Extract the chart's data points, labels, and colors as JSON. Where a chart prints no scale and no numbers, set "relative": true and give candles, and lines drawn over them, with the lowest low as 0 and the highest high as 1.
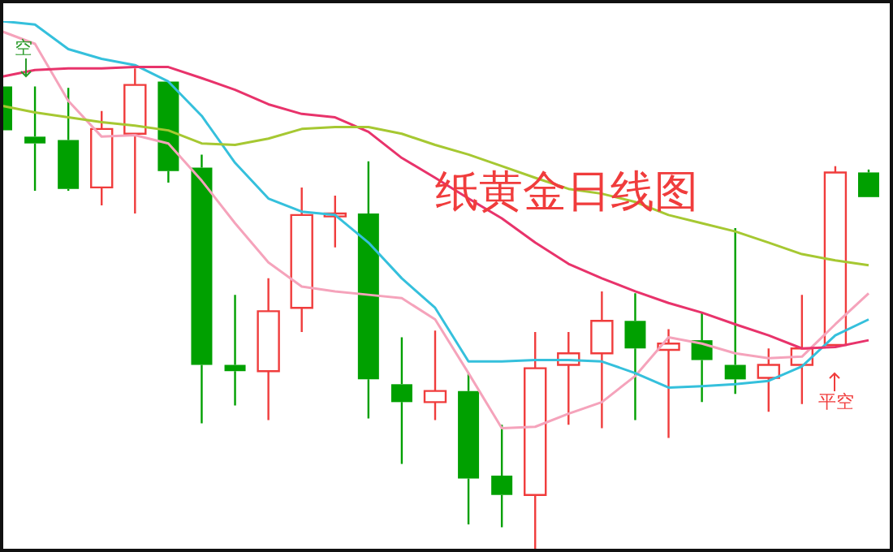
{
  "chart_data": {
    "type": "candlestick",
    "title": "纸黄金日线图",
    "relative": true,
    "categories": [
      null,
      null,
      null,
      null,
      null,
      null,
      null,
      null,
      null,
      null,
      null,
      null,
      null,
      null,
      null,
      null,
      null,
      null,
      null,
      null,
      null,
      null,
      null,
      null,
      null,
      null,
      null
    ],
    "ohlc": [
      [
        0.963,
        0.963,
        0.869,
        0.872
      ],
      [
        0.859,
        0.963,
        0.747,
        0.845
      ],
      [
        0.852,
        0.96,
        0.747,
        0.751
      ],
      [
        0.754,
        0.912,
        0.717,
        0.875
      ],
      [
        0.865,
        1.0,
        0.7,
        0.966
      ],
      [
        0.973,
        0.973,
        0.764,
        0.788
      ],
      [
        0.795,
        0.822,
        0.266,
        0.387
      ],
      [
        0.387,
        0.532,
        0.303,
        0.374
      ],
      [
        0.374,
        0.566,
        0.273,
        0.498
      ],
      [
        0.505,
        0.754,
        0.455,
        0.697
      ],
      [
        0.694,
        0.737,
        0.63,
        0.7
      ],
      [
        0.7,
        0.808,
        0.276,
        0.357
      ],
      [
        0.347,
        0.444,
        0.182,
        0.31
      ],
      [
        0.31,
        0.458,
        0.273,
        0.333
      ],
      [
        0.333,
        0.37,
        0.057,
        0.152
      ],
      [
        0.158,
        0.263,
        0.051,
        0.118
      ],
      [
        0.118,
        0.455,
        0,
        0.38
      ],
      [
        0.387,
        0.455,
        0.263,
        0.411
      ],
      [
        0.411,
        0.539,
        0.256,
        0.478
      ],
      [
        0.478,
        0.535,
        0.273,
        0.421
      ],
      [
        0.418,
        0.461,
        0.236,
        0.431
      ],
      [
        0.438,
        0.495,
        0.31,
        0.397
      ],
      [
        0.387,
        0.67,
        0.327,
        0.357
      ],
      [
        0.36,
        0.421,
        0.29,
        0.387
      ],
      [
        0.387,
        0.532,
        0.306,
        0.421
      ],
      [
        0.428,
        0.798,
        0.428,
        0.785
      ],
      [
        0.785,
        0.791,
        0.734,
        0.734
      ]
    ],
    "series": [
      {
        "type": "line",
        "color": "#a6c832",
        "values": [
          0.923,
          0.909,
          0.899,
          0.889,
          0.882,
          0.872,
          0.845,
          0.842,
          0.855,
          0.875,
          0.879,
          0.879,
          0.865,
          0.842,
          0.822,
          0.798,
          0.774,
          0.751,
          0.741,
          0.724,
          0.697,
          0.68,
          0.663,
          0.64,
          0.616,
          0.603,
          0.593
        ]
      },
      {
        "type": "line",
        "color": "#e8336b",
        "values": [
          0.983,
          0.997,
          1.0,
          1.0,
          1.003,
          1.003,
          0.98,
          0.956,
          0.926,
          0.906,
          0.899,
          0.869,
          0.815,
          0.774,
          0.731,
          0.69,
          0.64,
          0.596,
          0.566,
          0.539,
          0.515,
          0.495,
          0.471,
          0.448,
          0.421,
          0.424,
          0.438
        ]
      },
      {
        "type": "line",
        "color": "#35c0dc",
        "values": [
          1.098,
          1.091,
          1.04,
          1.02,
          1.007,
          0.973,
          0.902,
          0.805,
          0.731,
          0.704,
          0.697,
          0.64,
          0.566,
          0.505,
          0.394,
          0.394,
          0.397,
          0.397,
          0.394,
          0.37,
          0.34,
          0.343,
          0.347,
          0.354,
          0.384,
          0.448,
          0.481
        ]
      },
      {
        "type": "line",
        "color": "#f5a3bb",
        "values": [
          1.077,
          1.051,
          0.933,
          0.859,
          0.862,
          0.845,
          0.768,
          0.68,
          0.599,
          0.549,
          0.539,
          0.532,
          0.525,
          0.481,
          0.37,
          0.256,
          0.259,
          0.286,
          0.31,
          0.364,
          0.444,
          0.431,
          0.411,
          0.401,
          0.404,
          0.471,
          0.535
        ]
      }
    ],
    "annotations": [
      "空",
      "平空"
    ],
    "marker": "none"
  }
}
